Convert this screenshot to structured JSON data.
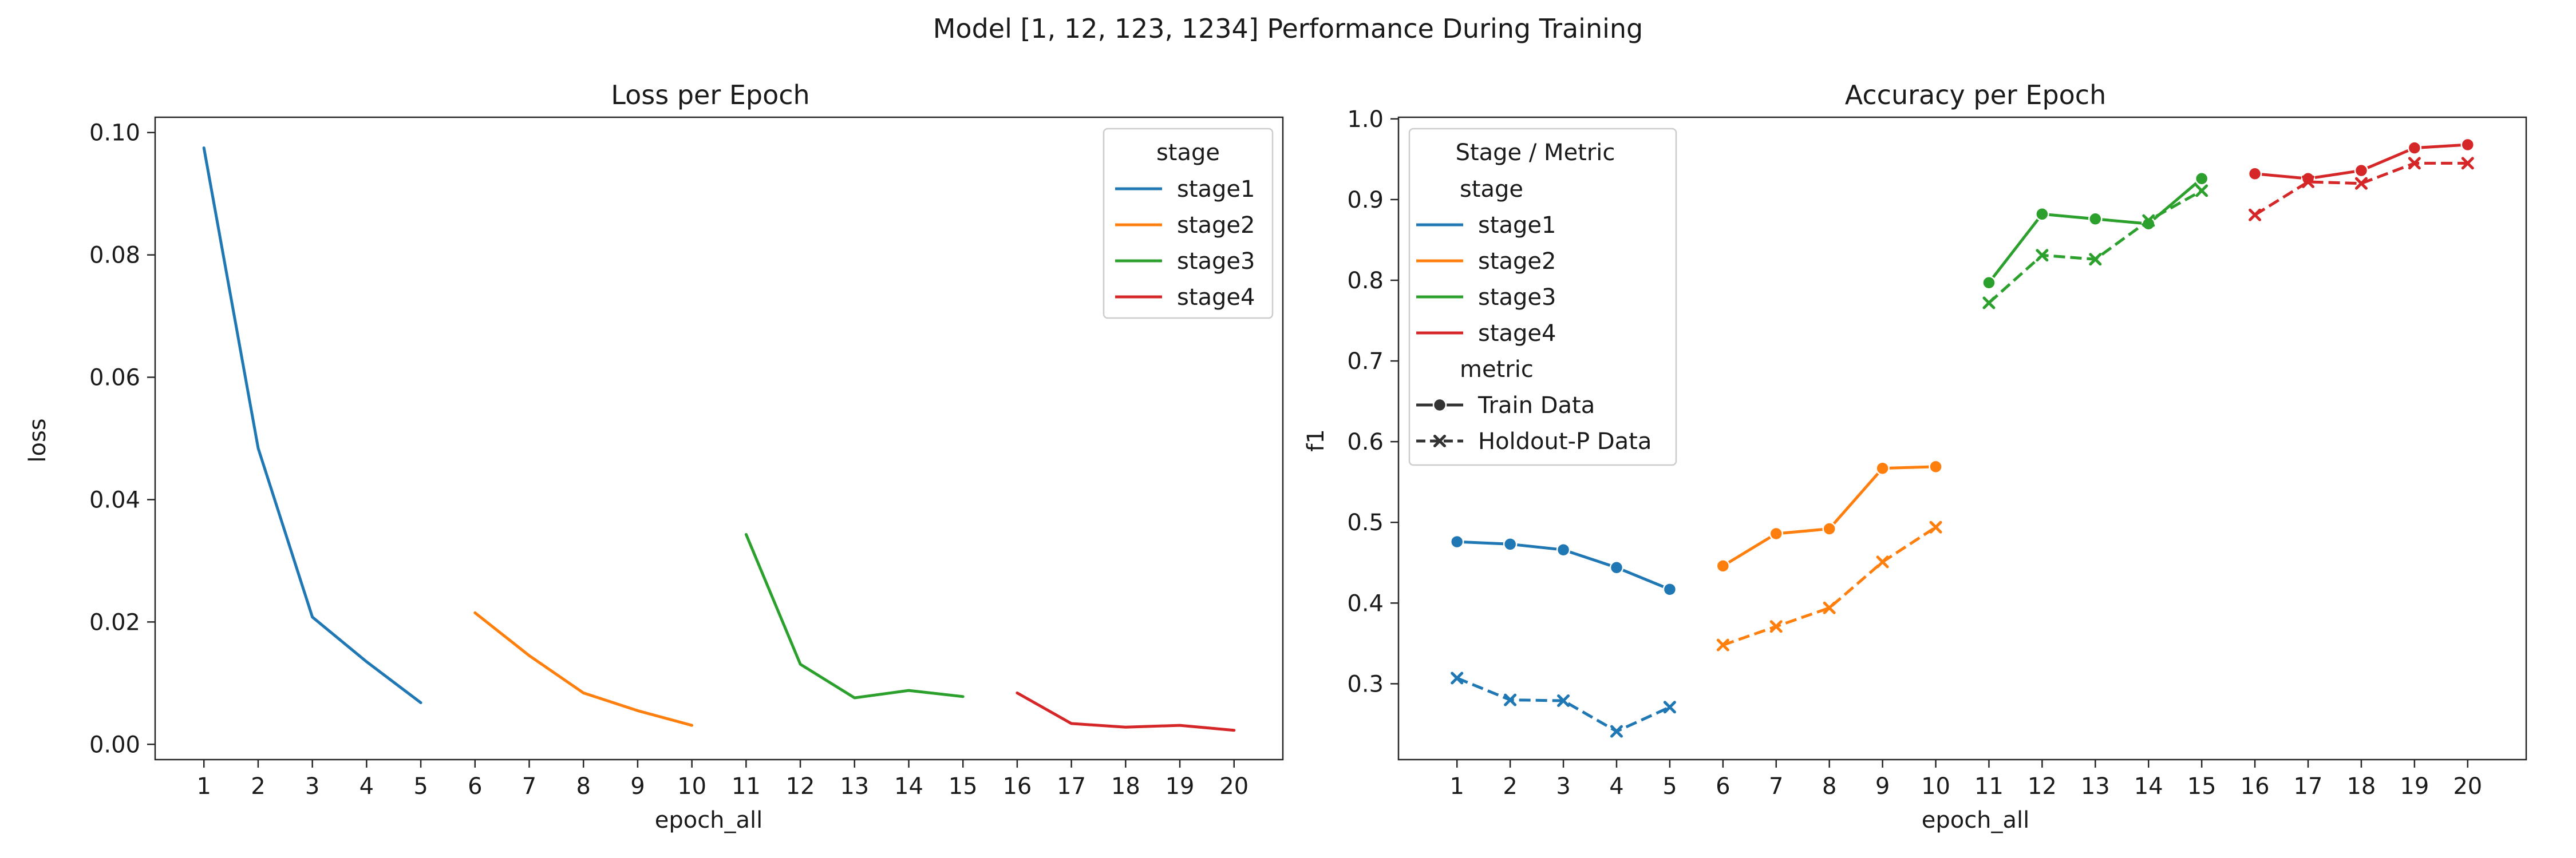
{
  "figure_title": "Model [1, 12, 123, 1234] Performance During Training",
  "colors": {
    "stage1": "#1f77b4",
    "stage2": "#ff7f0e",
    "stage3": "#2ca02c",
    "stage4": "#d62728"
  },
  "chart_data": [
    {
      "type": "line",
      "title": "Loss per Epoch",
      "xlabel": "epoch_all",
      "ylabel": "loss",
      "x_ticks": [
        1,
        2,
        3,
        4,
        5,
        6,
        7,
        8,
        9,
        10,
        11,
        12,
        13,
        14,
        15,
        16,
        17,
        18,
        19,
        20
      ],
      "y_ticks": [
        "0.00",
        "0.02",
        "0.04",
        "0.06",
        "0.08",
        "0.10"
      ],
      "xlim": [
        0.1,
        20.9
      ],
      "ylim": [
        -0.0025,
        0.1025
      ],
      "grid": false,
      "legend": {
        "title": "stage",
        "placement": "top-right",
        "entries": [
          "stage1",
          "stage2",
          "stage3",
          "stage4"
        ]
      },
      "series": [
        {
          "name": "stage1",
          "x": [
            1,
            2,
            3,
            4,
            5
          ],
          "y": [
            0.0975,
            0.0484,
            0.0208,
            0.0135,
            0.0068
          ]
        },
        {
          "name": "stage2",
          "x": [
            6,
            7,
            8,
            9,
            10
          ],
          "y": [
            0.0215,
            0.0145,
            0.0084,
            0.0055,
            0.0031
          ]
        },
        {
          "name": "stage3",
          "x": [
            11,
            12,
            13,
            14,
            15
          ],
          "y": [
            0.0343,
            0.0131,
            0.0076,
            0.0088,
            0.0078
          ]
        },
        {
          "name": "stage4",
          "x": [
            16,
            17,
            18,
            19,
            20
          ],
          "y": [
            0.0084,
            0.0034,
            0.0028,
            0.0031,
            0.0023
          ]
        }
      ]
    },
    {
      "type": "line",
      "title": "Accuracy per Epoch",
      "xlabel": "epoch_all",
      "ylabel": "f1",
      "x_ticks": [
        1,
        2,
        3,
        4,
        5,
        6,
        7,
        8,
        9,
        10,
        11,
        12,
        13,
        14,
        15,
        16,
        17,
        18,
        19,
        20
      ],
      "y_ticks": [
        "0.3",
        "0.4",
        "0.5",
        "0.6",
        "0.7",
        "0.8",
        "0.9",
        "1.0"
      ],
      "xlim": [
        -0.1,
        21.1
      ],
      "ylim": [
        0.206,
        1.002
      ],
      "grid": false,
      "legend": {
        "title": "Stage / Metric",
        "placement": "top-left",
        "stage_header": "stage",
        "stage_entries": [
          "stage1",
          "stage2",
          "stage3",
          "stage4"
        ],
        "metric_header": "metric",
        "metric_entries": [
          {
            "label": "Train Data",
            "marker": "circle",
            "dash": "solid"
          },
          {
            "label": "Holdout-P Data",
            "marker": "x",
            "dash": "dashed"
          }
        ]
      },
      "series": [
        {
          "stage": "stage1",
          "metric": "Train Data",
          "x": [
            1,
            2,
            3,
            4,
            5
          ],
          "y": [
            0.476,
            0.473,
            0.466,
            0.444,
            0.417
          ]
        },
        {
          "stage": "stage1",
          "metric": "Holdout-P Data",
          "x": [
            1,
            2,
            3,
            4,
            5
          ],
          "y": [
            0.307,
            0.28,
            0.279,
            0.241,
            0.271
          ]
        },
        {
          "stage": "stage2",
          "metric": "Train Data",
          "x": [
            6,
            7,
            8,
            9,
            10
          ],
          "y": [
            0.446,
            0.486,
            0.492,
            0.567,
            0.569
          ]
        },
        {
          "stage": "stage2",
          "metric": "Holdout-P Data",
          "x": [
            6,
            7,
            8,
            9,
            10
          ],
          "y": [
            0.348,
            0.371,
            0.394,
            0.451,
            0.494
          ]
        },
        {
          "stage": "stage3",
          "metric": "Train Data",
          "x": [
            11,
            12,
            13,
            14,
            15
          ],
          "y": [
            0.797,
            0.882,
            0.876,
            0.87,
            0.926
          ]
        },
        {
          "stage": "stage3",
          "metric": "Holdout-P Data",
          "x": [
            11,
            12,
            13,
            14,
            15
          ],
          "y": [
            0.772,
            0.831,
            0.826,
            0.874,
            0.911
          ]
        },
        {
          "stage": "stage4",
          "metric": "Train Data",
          "x": [
            16,
            17,
            18,
            19,
            20
          ],
          "y": [
            0.932,
            0.926,
            0.936,
            0.964,
            0.968
          ]
        },
        {
          "stage": "stage4",
          "metric": "Holdout-P Data",
          "x": [
            16,
            17,
            18,
            19,
            20
          ],
          "y": [
            0.881,
            0.922,
            0.92,
            0.945,
            0.945
          ]
        }
      ]
    }
  ]
}
